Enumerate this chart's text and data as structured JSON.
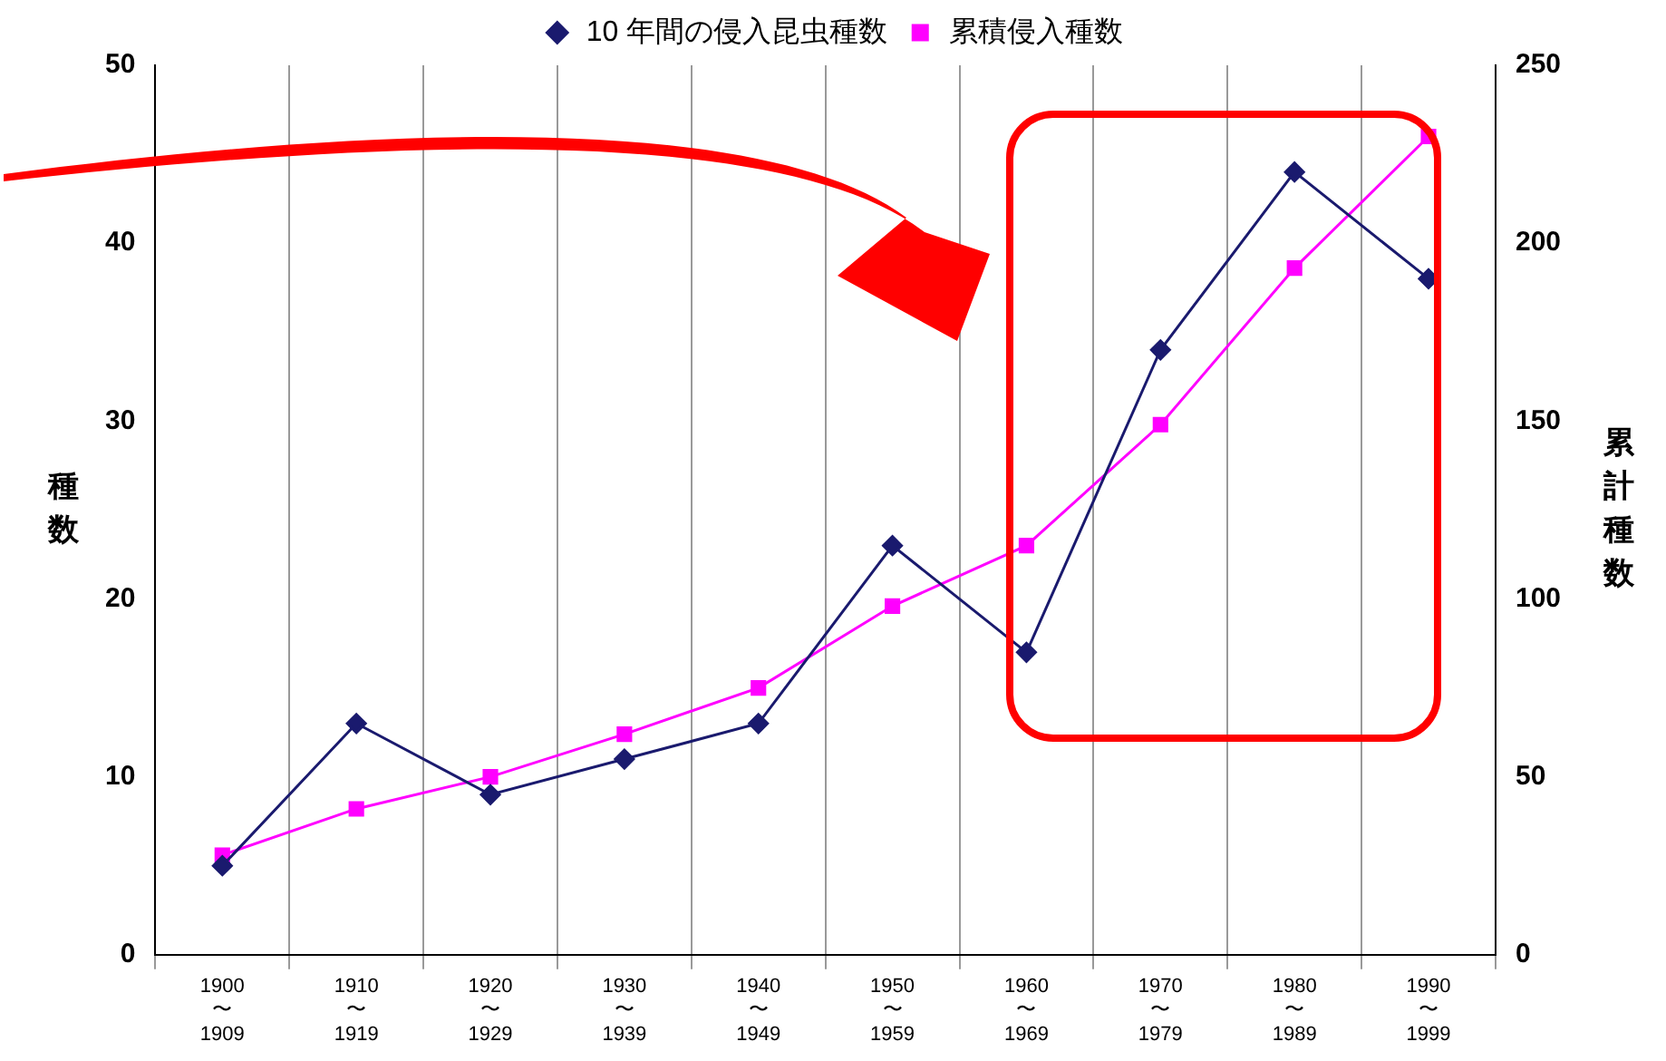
{
  "chart_data": {
    "type": "line",
    "categories": [
      "1900\n〜\n1909",
      "1910\n〜\n1919",
      "1920\n〜\n1929",
      "1930\n〜\n1939",
      "1940\n〜\n1949",
      "1950\n〜\n1959",
      "1960\n〜\n1969",
      "1970\n〜\n1979",
      "1980\n〜\n1989",
      "1990\n〜\n1999"
    ],
    "series": [
      {
        "name": "10 年間の侵入昆虫種数",
        "color": "#1a1a6e",
        "marker": "diamond",
        "values": [
          5,
          13,
          9,
          11,
          13,
          23,
          17,
          34,
          44,
          38
        ]
      },
      {
        "name": "累積侵入種数",
        "color": "#ff00ff",
        "marker": "square",
        "axis": "y2",
        "values": [
          28,
          41,
          50,
          62,
          75,
          98,
          115,
          149,
          193,
          230
        ]
      }
    ],
    "ylabel": "種数",
    "y2label": "累計種数",
    "ylim": [
      0,
      50
    ],
    "yticks": [
      0,
      10,
      20,
      30,
      40,
      50
    ],
    "y2lim": [
      0,
      250
    ],
    "y2ticks": [
      0,
      50,
      100,
      150,
      200,
      250
    ],
    "grid": "x",
    "legend": "top"
  }
}
